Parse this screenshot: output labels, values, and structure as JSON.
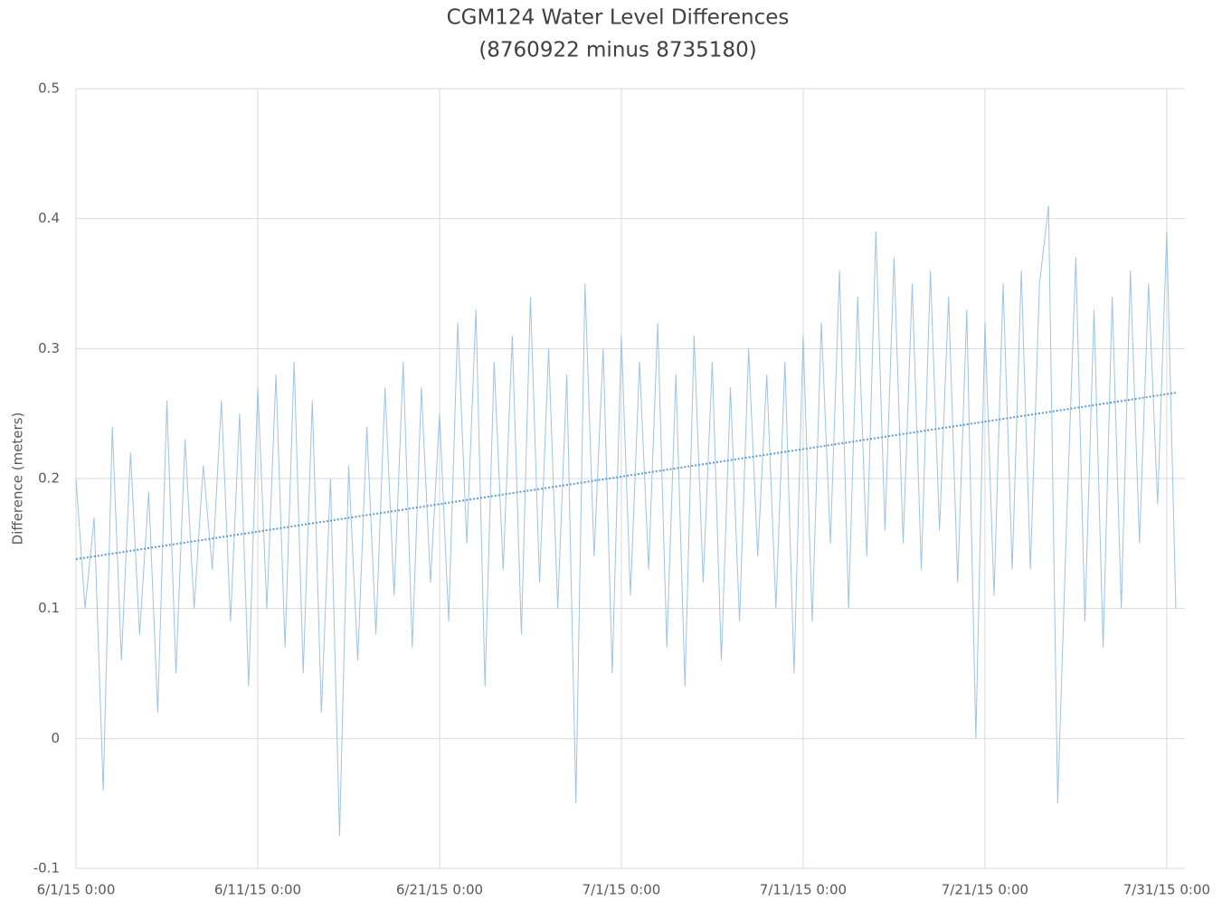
{
  "chart_data": {
    "type": "line",
    "title": "CGM124 Water Level Differences",
    "subtitle": "(8760922 minus 8735180)",
    "y_label": "Difference (meters)",
    "xlim": [
      0,
      61
    ],
    "xticks": [
      {
        "value": 0,
        "label": "6/1/15 0:00"
      },
      {
        "value": 10,
        "label": "6/11/15 0:00"
      },
      {
        "value": 20,
        "label": "6/21/15 0:00"
      },
      {
        "value": 30,
        "label": "7/1/15 0:00"
      },
      {
        "value": 40,
        "label": "7/11/15 0:00"
      },
      {
        "value": 50,
        "label": "7/21/15 0:00"
      },
      {
        "value": 60,
        "label": "7/31/15 0:00"
      }
    ],
    "ylim": [
      -0.1,
      0.5
    ],
    "yticks": [
      -0.1,
      0,
      0.1,
      0.2,
      0.3,
      0.4,
      0.5
    ],
    "grid": true,
    "series": [
      {
        "color": "#9dc3e6",
        "style": "solid",
        "x": [
          0,
          0.5,
          1,
          1.5,
          2,
          2.5,
          3,
          3.5,
          4,
          4.5,
          5,
          5.5,
          6,
          6.5,
          7,
          7.5,
          8,
          8.5,
          9,
          9.5,
          10,
          10.5,
          11,
          11.5,
          12,
          12.5,
          13,
          13.5,
          14,
          14.5,
          15,
          15.5,
          16,
          16.5,
          17,
          17.5,
          18,
          18.5,
          19,
          19.5,
          20,
          20.5,
          21,
          21.5,
          22,
          22.5,
          23,
          23.5,
          24,
          24.5,
          25,
          25.5,
          26,
          26.5,
          27,
          27.5,
          28,
          28.5,
          29,
          29.5,
          30,
          30.5,
          31,
          31.5,
          32,
          32.5,
          33,
          33.5,
          34,
          34.5,
          35,
          35.5,
          36,
          36.5,
          37,
          37.5,
          38,
          38.5,
          39,
          39.5,
          40,
          40.5,
          41,
          41.5,
          42,
          42.5,
          43,
          43.5,
          44,
          44.5,
          45,
          45.5,
          46,
          46.5,
          47,
          47.5,
          48,
          48.5,
          49,
          49.5,
          50,
          50.5,
          51,
          51.5,
          52,
          52.5,
          53,
          53.5,
          54,
          54.5,
          55,
          55.5,
          56,
          56.5,
          57,
          57.5,
          58,
          58.5,
          59,
          59.5,
          60,
          60.5
        ],
        "values": [
          0.2,
          0.1,
          0.17,
          -0.04,
          0.24,
          0.06,
          0.22,
          0.08,
          0.19,
          0.02,
          0.26,
          0.05,
          0.23,
          0.1,
          0.21,
          0.13,
          0.26,
          0.09,
          0.25,
          0.04,
          0.27,
          0.1,
          0.28,
          0.07,
          0.29,
          0.05,
          0.26,
          0.02,
          0.2,
          -0.075,
          0.21,
          0.06,
          0.24,
          0.08,
          0.27,
          0.11,
          0.29,
          0.07,
          0.27,
          0.12,
          0.25,
          0.09,
          0.32,
          0.15,
          0.33,
          0.04,
          0.29,
          0.13,
          0.31,
          0.08,
          0.34,
          0.12,
          0.3,
          0.1,
          0.28,
          -0.05,
          0.35,
          0.14,
          0.3,
          0.05,
          0.31,
          0.11,
          0.29,
          0.13,
          0.32,
          0.07,
          0.28,
          0.04,
          0.31,
          0.12,
          0.29,
          0.06,
          0.27,
          0.09,
          0.3,
          0.14,
          0.28,
          0.1,
          0.29,
          0.05,
          0.31,
          0.09,
          0.32,
          0.15,
          0.36,
          0.1,
          0.34,
          0.14,
          0.39,
          0.16,
          0.37,
          0.15,
          0.35,
          0.13,
          0.36,
          0.16,
          0.34,
          0.12,
          0.33,
          0.0,
          0.32,
          0.11,
          0.35,
          0.13,
          0.36,
          0.13,
          0.35,
          0.41,
          -0.05,
          0.17,
          0.37,
          0.09,
          0.33,
          0.07,
          0.34,
          0.1,
          0.36,
          0.15,
          0.35,
          0.18,
          0.39,
          0.1
        ]
      },
      {
        "color": "#5b9bd5",
        "style": "dotted",
        "x": [
          0,
          60.5
        ],
        "values": [
          0.138,
          0.266
        ]
      }
    ]
  }
}
